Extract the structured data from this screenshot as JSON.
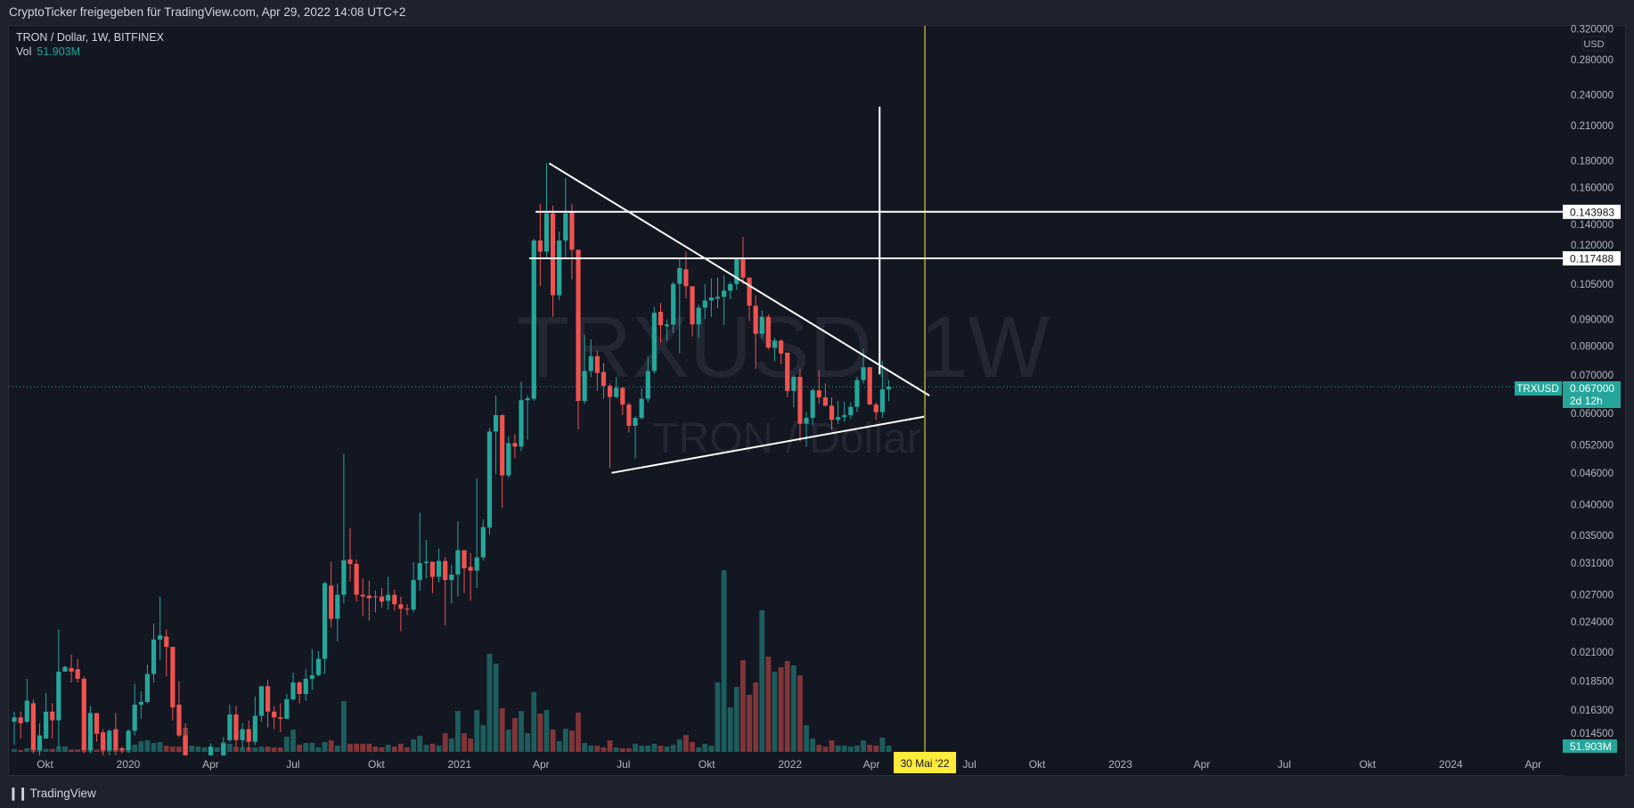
{
  "header": {
    "share_text": "CryptoTicker freigegeben für TradingView.com, Apr 29, 2022 14:08 UTC+2"
  },
  "legend": {
    "symbol_line": "TRON / Dollar, 1W, BITFINEX",
    "vol_label": "Vol",
    "vol_value": "51.903M"
  },
  "watermark": {
    "symbol": "TRXUSD, 1W",
    "description": "TRON / Dollar"
  },
  "footer": {
    "logo_mark": "TV",
    "brand": "TradingView"
  },
  "colors": {
    "up": "#26a69a",
    "down": "#ef5350",
    "up_volume": "#1d5d5c",
    "down_volume": "#813539",
    "background": "#131722",
    "drawings": "#ffffff",
    "cursor": "#ffeb3b",
    "axis_text": "#b2b5be"
  },
  "price_axis": {
    "currency": "USD"
  },
  "labels": {
    "symbol_tag": "TRXUSD",
    "last_price": "0.067000",
    "countdown": "2d 12h",
    "last_volume": "51.903M",
    "cursor_date": "30 Mai '22"
  },
  "chart_data": {
    "type": "candlestick",
    "symbol": "TRXUSD",
    "interval": "1W",
    "exchange": "BITFINEX",
    "yscale": "log",
    "ylim": [
      0.0134,
      0.326
    ],
    "grid": false,
    "last_price": 0.067,
    "cursor_date": "2022-05-30",
    "y_ticks": [
      "0.320000",
      "0.280000",
      "0.240000",
      "0.210000",
      "0.180000",
      "0.160000",
      "0.140000",
      "0.120000",
      "0.105000",
      "0.090000",
      "0.080000",
      "0.070000",
      "0.060000",
      "0.052000",
      "0.046000",
      "0.040000",
      "0.035000",
      "0.031000",
      "0.027000",
      "0.024000",
      "0.021000",
      "0.018500",
      "0.016300",
      "0.014500"
    ],
    "x_ticks": [
      {
        "label": "Okt",
        "date": "2019-10-01"
      },
      {
        "label": "2020",
        "date": "2020-01-01"
      },
      {
        "label": "Apr",
        "date": "2020-04-01"
      },
      {
        "label": "Jul",
        "date": "2020-07-01"
      },
      {
        "label": "Okt",
        "date": "2020-10-01"
      },
      {
        "label": "2021",
        "date": "2021-01-01"
      },
      {
        "label": "Apr",
        "date": "2021-04-01"
      },
      {
        "label": "Jul",
        "date": "2021-07-01"
      },
      {
        "label": "Okt",
        "date": "2021-10-01"
      },
      {
        "label": "2022",
        "date": "2022-01-01"
      },
      {
        "label": "Apr",
        "date": "2022-04-01"
      },
      {
        "label": "Jul",
        "date": "2022-07-01"
      },
      {
        "label": "Okt",
        "date": "2022-10-01"
      },
      {
        "label": "2023",
        "date": "2023-01-01"
      },
      {
        "label": "Apr",
        "date": "2023-04-01"
      },
      {
        "label": "Jul",
        "date": "2023-07-01"
      },
      {
        "label": "Okt",
        "date": "2023-10-01"
      },
      {
        "label": "2024",
        "date": "2024-01-01"
      },
      {
        "label": "Apr",
        "date": "2024-04-01"
      }
    ],
    "columns": [
      "date",
      "open",
      "high",
      "low",
      "close",
      "volume_M"
    ],
    "candles": [
      [
        "2019-09-02",
        0.0155,
        0.0162,
        0.014,
        0.0158,
        22
      ],
      [
        "2019-09-09",
        0.0158,
        0.0162,
        0.0144,
        0.0154,
        15
      ],
      [
        "2019-09-16",
        0.0155,
        0.0187,
        0.0154,
        0.017,
        30
      ],
      [
        "2019-09-23",
        0.0168,
        0.0171,
        0.0135,
        0.0137,
        40
      ],
      [
        "2019-09-30",
        0.0137,
        0.0154,
        0.0133,
        0.0146,
        30
      ],
      [
        "2019-10-07",
        0.0144,
        0.0176,
        0.0144,
        0.0162,
        25
      ],
      [
        "2019-10-14",
        0.0162,
        0.0168,
        0.0144,
        0.0156,
        25
      ],
      [
        "2019-10-21",
        0.0156,
        0.0232,
        0.0138,
        0.0193,
        45
      ],
      [
        "2019-10-28",
        0.0193,
        0.0198,
        0.0193,
        0.0197,
        45
      ],
      [
        "2019-11-04",
        0.0196,
        0.0208,
        0.0184,
        0.0193,
        20
      ],
      [
        "2019-11-11",
        0.0195,
        0.0204,
        0.0184,
        0.0187,
        20
      ],
      [
        "2019-11-18",
        0.0187,
        0.0189,
        0.0135,
        0.0137,
        30
      ],
      [
        "2019-11-25",
        0.0137,
        0.0166,
        0.0135,
        0.0161,
        40
      ],
      [
        "2019-12-02",
        0.0161,
        0.0161,
        0.0142,
        0.0147,
        20
      ],
      [
        "2019-12-09",
        0.0148,
        0.015,
        0.0133,
        0.0137,
        110
      ],
      [
        "2019-12-16",
        0.0137,
        0.015,
        0.0134,
        0.0149,
        30
      ],
      [
        "2019-12-23",
        0.015,
        0.0161,
        0.0134,
        0.0137,
        35
      ],
      [
        "2019-12-30",
        0.0138,
        0.0139,
        0.0135,
        0.0137,
        20
      ],
      [
        "2020-01-06",
        0.0137,
        0.015,
        0.0135,
        0.0149,
        25
      ],
      [
        "2020-01-13",
        0.0149,
        0.0183,
        0.0146,
        0.0167,
        60
      ],
      [
        "2020-01-20",
        0.0167,
        0.0177,
        0.0157,
        0.0169,
        89
      ],
      [
        "2020-01-27",
        0.0169,
        0.0199,
        0.0168,
        0.0191,
        96
      ],
      [
        "2020-02-03",
        0.0191,
        0.0238,
        0.0184,
        0.0222,
        74
      ],
      [
        "2020-02-10",
        0.0222,
        0.0268,
        0.0203,
        0.0226,
        81
      ],
      [
        "2020-02-17",
        0.0225,
        0.0232,
        0.0189,
        0.0215,
        52
      ],
      [
        "2020-02-24",
        0.0215,
        0.0215,
        0.0156,
        0.0165,
        44
      ],
      [
        "2020-03-02",
        0.0167,
        0.0185,
        0.0145,
        0.0146,
        44
      ],
      [
        "2020-03-09",
        0.0146,
        0.0154,
        0.0095,
        0.0105,
        200
      ],
      [
        "2020-03-16",
        0.0105,
        0.0118,
        0.0098,
        0.0112,
        52
      ],
      [
        "2020-03-23",
        0.0112,
        0.0122,
        0.0108,
        0.0118,
        44
      ],
      [
        "2020-03-30",
        0.0118,
        0.0128,
        0.0114,
        0.0124,
        37
      ],
      [
        "2020-04-06",
        0.0124,
        0.0141,
        0.012,
        0.0139,
        44
      ],
      [
        "2020-04-13",
        0.0126,
        0.0134,
        0.0124,
        0.0133,
        37
      ],
      [
        "2020-04-20",
        0.0128,
        0.0145,
        0.0126,
        0.0141,
        81
      ],
      [
        "2020-04-27",
        0.0143,
        0.0167,
        0.0142,
        0.016,
        67
      ],
      [
        "2020-05-04",
        0.016,
        0.0166,
        0.0139,
        0.0143,
        44
      ],
      [
        "2020-05-11",
        0.0143,
        0.0154,
        0.0138,
        0.015,
        37
      ],
      [
        "2020-05-18",
        0.015,
        0.0156,
        0.0137,
        0.0142,
        37
      ],
      [
        "2020-05-25",
        0.0142,
        0.0173,
        0.014,
        0.0159,
        37
      ],
      [
        "2020-06-01",
        0.0159,
        0.0181,
        0.0155,
        0.0181,
        44
      ],
      [
        "2020-06-08",
        0.0181,
        0.0186,
        0.0151,
        0.0162,
        44
      ],
      [
        "2020-06-15",
        0.0162,
        0.0166,
        0.015,
        0.0158,
        37
      ],
      [
        "2020-06-22",
        0.0158,
        0.0168,
        0.0148,
        0.0157,
        37
      ],
      [
        "2020-06-29",
        0.0157,
        0.0175,
        0.0157,
        0.0171,
        126
      ],
      [
        "2020-07-06",
        0.0171,
        0.0192,
        0.017,
        0.0184,
        185
      ],
      [
        "2020-07-13",
        0.0184,
        0.0185,
        0.0168,
        0.0175,
        60
      ],
      [
        "2020-07-20",
        0.0175,
        0.0195,
        0.017,
        0.0187,
        74
      ],
      [
        "2020-07-27",
        0.0187,
        0.0213,
        0.0178,
        0.019,
        74
      ],
      [
        "2020-08-03",
        0.019,
        0.0211,
        0.0189,
        0.0204,
        37
      ],
      [
        "2020-08-10",
        0.0204,
        0.0286,
        0.0191,
        0.0284,
        81
      ],
      [
        "2020-08-17",
        0.0281,
        0.0312,
        0.0234,
        0.0243,
        96
      ],
      [
        "2020-08-24",
        0.0243,
        0.0283,
        0.022,
        0.027,
        52
      ],
      [
        "2020-08-31",
        0.027,
        0.05,
        0.026,
        0.0314,
        422
      ],
      [
        "2020-09-07",
        0.0315,
        0.0361,
        0.0286,
        0.0309,
        67
      ],
      [
        "2020-09-14",
        0.0309,
        0.0315,
        0.0262,
        0.027,
        67
      ],
      [
        "2020-09-21",
        0.027,
        0.029,
        0.0246,
        0.0268,
        67
      ],
      [
        "2020-09-28",
        0.0269,
        0.0287,
        0.0241,
        0.0266,
        67
      ],
      [
        "2020-10-05",
        0.0268,
        0.0275,
        0.025,
        0.0267,
        44
      ],
      [
        "2020-10-12",
        0.0268,
        0.0278,
        0.0255,
        0.0262,
        37
      ],
      [
        "2020-10-19",
        0.0263,
        0.0292,
        0.0253,
        0.027,
        59
      ],
      [
        "2020-10-26",
        0.027,
        0.0276,
        0.0252,
        0.0259,
        44
      ],
      [
        "2020-11-02",
        0.0259,
        0.0268,
        0.023,
        0.0254,
        67
      ],
      [
        "2020-11-09",
        0.0254,
        0.0259,
        0.0247,
        0.0253,
        37
      ],
      [
        "2020-11-16",
        0.0253,
        0.0311,
        0.025,
        0.0288,
        104
      ],
      [
        "2020-11-23",
        0.0288,
        0.0387,
        0.0275,
        0.031,
        133
      ],
      [
        "2020-11-30",
        0.031,
        0.0343,
        0.029,
        0.0312,
        59
      ],
      [
        "2020-12-07",
        0.0312,
        0.0312,
        0.0272,
        0.0292,
        67
      ],
      [
        "2020-12-14",
        0.0292,
        0.033,
        0.0285,
        0.0313,
        52
      ],
      [
        "2020-12-21",
        0.0313,
        0.0318,
        0.0236,
        0.0288,
        155
      ],
      [
        "2020-12-28",
        0.0288,
        0.0308,
        0.026,
        0.0295,
        111
      ],
      [
        "2021-01-04",
        0.0295,
        0.0372,
        0.0268,
        0.0328,
        340
      ],
      [
        "2021-01-11",
        0.0328,
        0.0328,
        0.0272,
        0.0303,
        155
      ],
      [
        "2021-01-18",
        0.0305,
        0.0324,
        0.0263,
        0.03,
        111
      ],
      [
        "2021-01-25",
        0.03,
        0.0449,
        0.0278,
        0.0318,
        348
      ],
      [
        "2021-02-01",
        0.0318,
        0.0375,
        0.0314,
        0.0363,
        222
      ],
      [
        "2021-02-08",
        0.0362,
        0.056,
        0.0351,
        0.0551,
        814
      ],
      [
        "2021-02-15",
        0.0551,
        0.0645,
        0.0457,
        0.0592,
        733
      ],
      [
        "2021-02-22",
        0.0592,
        0.0594,
        0.0395,
        0.0455,
        363
      ],
      [
        "2021-03-01",
        0.0455,
        0.054,
        0.045,
        0.0524,
        185
      ],
      [
        "2021-03-08",
        0.0524,
        0.0545,
        0.049,
        0.0516,
        281
      ],
      [
        "2021-03-15",
        0.0516,
        0.0685,
        0.0505,
        0.0632,
        340
      ],
      [
        "2021-03-22",
        0.0632,
        0.0645,
        0.0532,
        0.0637,
        155
      ],
      [
        "2021-03-29",
        0.0636,
        0.128,
        0.063,
        0.127,
        496
      ],
      [
        "2021-04-05",
        0.127,
        0.149,
        0.104,
        0.121,
        318
      ],
      [
        "2021-04-12",
        0.121,
        0.178,
        0.118,
        0.143,
        348
      ],
      [
        "2021-04-19",
        0.143,
        0.148,
        0.091,
        0.1,
        185
      ],
      [
        "2021-04-26",
        0.1,
        0.132,
        0.098,
        0.127,
        89
      ],
      [
        "2021-05-03",
        0.127,
        0.167,
        0.118,
        0.143,
        192
      ],
      [
        "2021-05-10",
        0.144,
        0.149,
        0.107,
        0.122,
        178
      ],
      [
        "2021-05-17",
        0.122,
        0.122,
        0.0556,
        0.063,
        326
      ],
      [
        "2021-05-24",
        0.063,
        0.0841,
        0.0622,
        0.0718,
        74
      ],
      [
        "2021-05-31",
        0.0718,
        0.0825,
        0.0699,
        0.0766,
        52
      ],
      [
        "2021-06-07",
        0.0766,
        0.0786,
        0.0658,
        0.0712,
        52
      ],
      [
        "2021-06-14",
        0.0715,
        0.0744,
        0.0636,
        0.0673,
        37
      ],
      [
        "2021-06-21",
        0.0673,
        0.068,
        0.047,
        0.0641,
        96
      ],
      [
        "2021-06-28",
        0.0641,
        0.0699,
        0.0636,
        0.0667,
        37
      ],
      [
        "2021-07-05",
        0.0667,
        0.067,
        0.0593,
        0.062,
        30
      ],
      [
        "2021-07-12",
        0.062,
        0.0625,
        0.0549,
        0.0565,
        30
      ],
      [
        "2021-07-19",
        0.0565,
        0.059,
        0.049,
        0.0585,
        67
      ],
      [
        "2021-07-26",
        0.0585,
        0.0666,
        0.058,
        0.0636,
        52
      ],
      [
        "2021-08-02",
        0.0636,
        0.0766,
        0.0626,
        0.0718,
        52
      ],
      [
        "2021-08-09",
        0.0718,
        0.0949,
        0.071,
        0.0926,
        67
      ],
      [
        "2021-08-16",
        0.093,
        0.0967,
        0.0812,
        0.0877,
        52
      ],
      [
        "2021-08-23",
        0.0873,
        0.09,
        0.0821,
        0.088,
        44
      ],
      [
        "2021-08-30",
        0.088,
        0.106,
        0.0848,
        0.1051,
        59
      ],
      [
        "2021-09-06",
        0.1051,
        0.117,
        0.0775,
        0.1126,
        104
      ],
      [
        "2021-09-13",
        0.112,
        0.121,
        0.0987,
        0.104,
        141
      ],
      [
        "2021-09-20",
        0.104,
        0.104,
        0.0835,
        0.088,
        81
      ],
      [
        "2021-09-27",
        0.088,
        0.096,
        0.0829,
        0.0947,
        37
      ],
      [
        "2021-10-04",
        0.0947,
        0.105,
        0.09,
        0.0977,
        67
      ],
      [
        "2021-10-11",
        0.0977,
        0.1077,
        0.091,
        0.099,
        52
      ],
      [
        "2021-10-18",
        0.0985,
        0.108,
        0.0945,
        0.0993,
        577
      ],
      [
        "2021-10-25",
        0.0993,
        0.109,
        0.0878,
        0.102,
        1510
      ],
      [
        "2021-11-01",
        0.102,
        0.106,
        0.0982,
        0.105,
        370
      ],
      [
        "2021-11-08",
        0.105,
        0.117,
        0.1023,
        0.117,
        540
      ],
      [
        "2021-11-15",
        0.117,
        0.129,
        0.105,
        0.108,
        762
      ],
      [
        "2021-11-22",
        0.108,
        0.108,
        0.0893,
        0.0955,
        474
      ],
      [
        "2021-11-29",
        0.0955,
        0.1,
        0.0725,
        0.0845,
        577
      ],
      [
        "2021-12-06",
        0.0845,
        0.0936,
        0.083,
        0.091,
        1177
      ],
      [
        "2021-12-13",
        0.091,
        0.092,
        0.0788,
        0.0795,
        792
      ],
      [
        "2021-12-20",
        0.0795,
        0.083,
        0.075,
        0.082,
        666
      ],
      [
        "2021-12-27",
        0.082,
        0.0825,
        0.074,
        0.0775,
        703
      ],
      [
        "2022-01-03",
        0.0778,
        0.0778,
        0.064,
        0.0658,
        755
      ],
      [
        "2022-01-10",
        0.0658,
        0.0705,
        0.0612,
        0.07,
        718
      ],
      [
        "2022-01-17",
        0.07,
        0.0725,
        0.0527,
        0.057,
        636
      ],
      [
        "2022-01-24",
        0.057,
        0.06,
        0.0516,
        0.0585,
        222
      ],
      [
        "2022-01-31",
        0.0585,
        0.0665,
        0.0567,
        0.066,
        111
      ],
      [
        "2022-02-07",
        0.066,
        0.072,
        0.0622,
        0.064,
        59
      ],
      [
        "2022-02-14",
        0.064,
        0.068,
        0.0615,
        0.0617,
        44
      ],
      [
        "2022-02-21",
        0.0617,
        0.064,
        0.0555,
        0.058,
        96
      ],
      [
        "2022-02-28",
        0.058,
        0.063,
        0.057,
        0.0587,
        52
      ],
      [
        "2022-03-07",
        0.0587,
        0.0628,
        0.0575,
        0.0592,
        52
      ],
      [
        "2022-03-14",
        0.0592,
        0.0626,
        0.0582,
        0.0614,
        44
      ],
      [
        "2022-03-21",
        0.0614,
        0.07,
        0.06,
        0.069,
        52
      ],
      [
        "2022-03-28",
        0.069,
        0.0792,
        0.068,
        0.073,
        96
      ],
      [
        "2022-04-04",
        0.073,
        0.073,
        0.062,
        0.062,
        59
      ],
      [
        "2022-04-11",
        0.062,
        0.0626,
        0.058,
        0.06,
        52
      ],
      [
        "2022-04-18",
        0.06,
        0.075,
        0.0585,
        0.0663,
        118
      ],
      [
        "2022-04-25",
        0.0663,
        0.069,
        0.063,
        0.067,
        51.903
      ]
    ],
    "drawings": {
      "trendlines": [
        {
          "from": {
            "date": "2021-04-10",
            "price": 0.178
          },
          "to": {
            "date": "2022-06-04",
            "price": 0.0645
          }
        },
        {
          "from": {
            "date": "2021-06-18",
            "price": 0.046
          },
          "to": {
            "date": "2022-05-29",
            "price": 0.0588
          }
        }
      ],
      "horizontal_rays": [
        {
          "from_date": "2021-03-26",
          "price": 0.143983,
          "label": "0.143983"
        },
        {
          "from_date": "2021-03-19",
          "price": 0.117488,
          "label": "0.117488"
        }
      ],
      "vertical_segment": {
        "date": "2022-04-10",
        "from_price": 0.228,
        "to_price": 0.0708
      }
    }
  }
}
